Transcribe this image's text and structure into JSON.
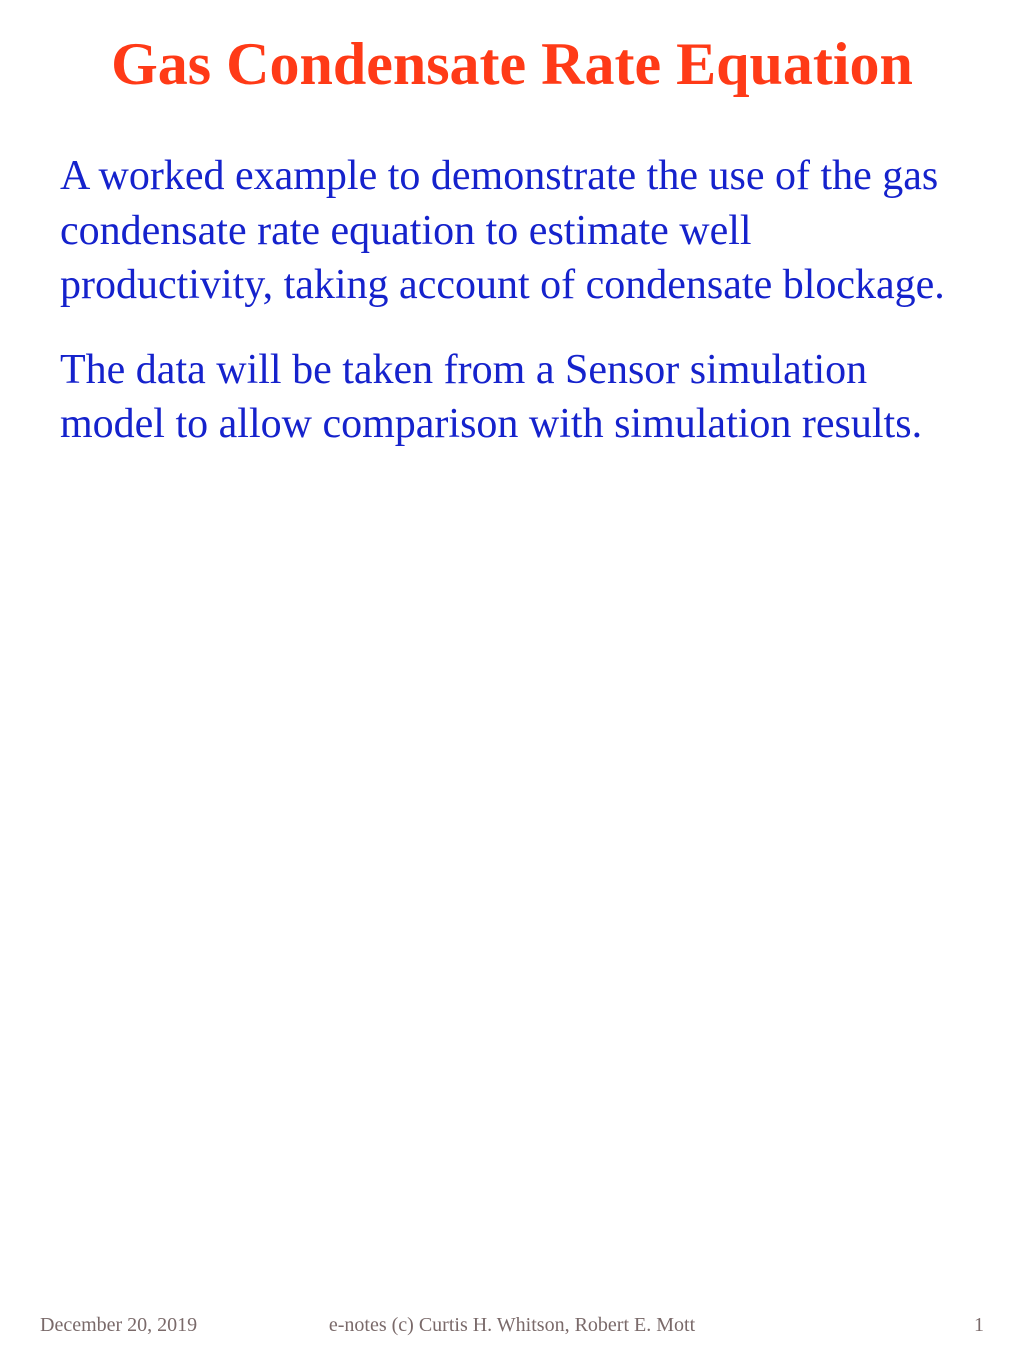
{
  "title": "Gas Condensate Rate Equation",
  "title_color": "#ff3a17",
  "title_fontsize": 60,
  "paragraphs": [
    "A worked example to demonstrate the use of the gas condensate rate equation to estimate well productivity, taking account of condensate blockage.",
    "The data will be taken from a Sensor simulation  model to allow comparison with simulation results."
  ],
  "body_color": "#1522cc",
  "body_fontsize": 42,
  "footer": {
    "date": "December 20, 2019",
    "copyright": "e-notes (c) Curtis H. Whitson, Robert E. Mott",
    "page_number": "1",
    "color": "#7a6a6a",
    "fontsize": 20
  },
  "background_color": "#ffffff"
}
